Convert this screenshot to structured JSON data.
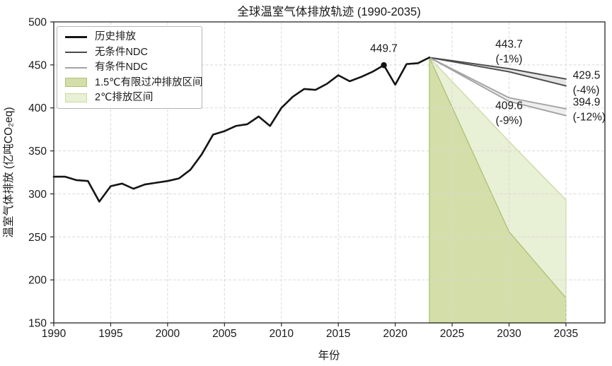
{
  "chart": {
    "title": "全球温室气体排放轨迹 (1990-2035)",
    "xlabel": "年份",
    "ylabel": "温室气体排放 (亿吨CO₂eq)"
  },
  "chart_data": {
    "type": "line",
    "title": "全球温室气体排放轨迹 (1990-2035)",
    "xlabel": "年份",
    "ylabel": "温室气体排放 (亿吨CO₂eq)",
    "xlim": [
      1990,
      2038.4
    ],
    "ylim": [
      150,
      500
    ],
    "xticks": [
      1990,
      1995,
      2000,
      2005,
      2010,
      2015,
      2020,
      2025,
      2030,
      2035
    ],
    "yticks": [
      150,
      200,
      250,
      300,
      350,
      400,
      450,
      500
    ],
    "grid": true,
    "legend_position": "upper-left",
    "historical": {
      "name": "历史排放",
      "color": "#141414",
      "x": [
        1990,
        1991,
        1992,
        1993,
        1994,
        1995,
        1996,
        1997,
        1998,
        1999,
        2000,
        2001,
        2002,
        2003,
        2004,
        2005,
        2006,
        2007,
        2008,
        2009,
        2010,
        2011,
        2012,
        2013,
        2014,
        2015,
        2016,
        2017,
        2018,
        2019,
        2020,
        2021,
        2022,
        2023
      ],
      "values": [
        320,
        320,
        316,
        315,
        291,
        309,
        312,
        306,
        311,
        313,
        315,
        318,
        328,
        346,
        369,
        373,
        379,
        381,
        390,
        379,
        400,
        413,
        422,
        421,
        428,
        438,
        431,
        436,
        442,
        449.7,
        427,
        451,
        452,
        458.6
      ],
      "marker": {
        "x": 2019,
        "y": 449.7
      }
    },
    "ndc_bands": [
      {
        "name": "无条件NDC",
        "line_color": "#4a4a4a",
        "fill": "#e6e6e6",
        "x": [
          2023,
          2030,
          2035
        ],
        "upper": [
          458.6,
          445.6,
          433.6
        ],
        "lower": [
          458.6,
          442.0,
          425.6
        ],
        "value_2030": 443.7,
        "pct_2030": "-1%",
        "value_2035": 429.5,
        "pct_2035": "-4%"
      },
      {
        "name": "有条件NDC",
        "line_color": "#a3a3a3",
        "fill": "#eeeeee",
        "x": [
          2023,
          2030,
          2035
        ],
        "upper": [
          458.6,
          411.8,
          399.0
        ],
        "lower": [
          458.6,
          407.6,
          391.0
        ],
        "value_2030": 409.6,
        "pct_2030": "-9%",
        "value_2035": 394.9,
        "pct_2035": "-12%"
      }
    ],
    "scenario_bands": [
      {
        "name": "2℃排放区间",
        "fill": "#e8f0d5",
        "edge": "#cbd9a2",
        "x": [
          2023,
          2030,
          2035
        ],
        "upper": [
          458.6,
          361,
          293
        ],
        "lower": [
          458.6,
          256,
          179
        ]
      },
      {
        "name": "1.5℃有限过冲排放区间",
        "fill": "#d3dea9",
        "edge": "#adc277",
        "x": [
          2023,
          2030,
          2035
        ],
        "upper": [
          458.6,
          256,
          179
        ],
        "lower_clip": 150
      }
    ],
    "annotations": [
      {
        "id": "peak-2019",
        "lines": [
          "449.7"
        ],
        "x": 2019,
        "y": 469,
        "align": "center",
        "color": "#141414"
      },
      {
        "id": "ndc-uncond-2030",
        "lines": [
          "443.7",
          "(-1%)"
        ],
        "x": 2030,
        "y": 465.5,
        "align": "center",
        "color": "#3a3a3a"
      },
      {
        "id": "ndc-uncond-2035",
        "lines": [
          "429.5",
          "(-4%)"
        ],
        "x": 2035.6,
        "y": 429.3,
        "align": "left",
        "color": "#3a3a3a"
      },
      {
        "id": "ndc-cond-2030",
        "lines": [
          "409.6",
          "(-9%)"
        ],
        "x": 2030,
        "y": 394.0,
        "align": "center",
        "color": "#a6a6a6"
      },
      {
        "id": "ndc-cond-2035",
        "lines": [
          "394.9",
          "(-12%)"
        ],
        "x": 2035.6,
        "y": 398.3,
        "align": "left",
        "color": "#a6a6a6"
      }
    ]
  },
  "legend": {
    "items": [
      {
        "label": "历史排放"
      },
      {
        "label": "无条件NDC"
      },
      {
        "label": "有条件NDC"
      },
      {
        "label": "1.5℃有限过冲排放区间"
      },
      {
        "label": "2℃排放区间"
      }
    ]
  }
}
